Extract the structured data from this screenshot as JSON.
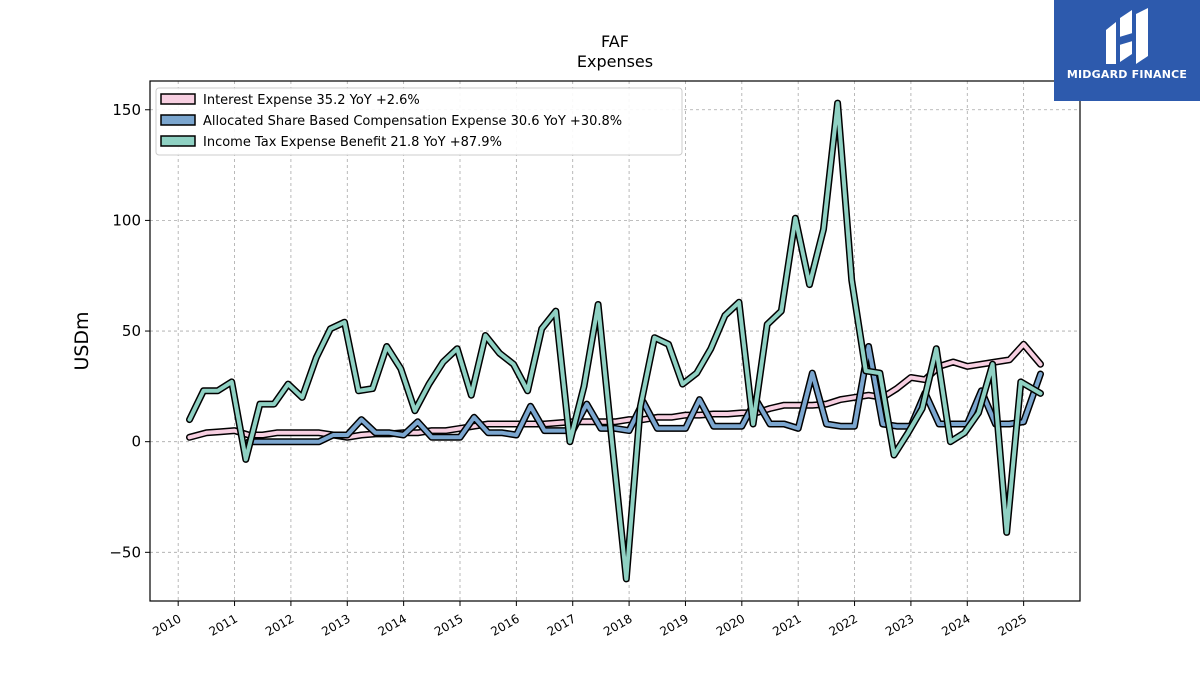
{
  "chart_data": {
    "type": "line",
    "title": "FAF",
    "subtitle": "Expenses",
    "xlabel": "",
    "ylabel": "USDm",
    "xlim": [
      2009.5,
      2026.0
    ],
    "ylim": [
      -72,
      163
    ],
    "yticks": [
      -50,
      0,
      50,
      100,
      150
    ],
    "ytick_labels": [
      "−50",
      "0",
      "50",
      "100",
      "150"
    ],
    "xticks": [
      2010,
      2011,
      2012,
      2013,
      2014,
      2015,
      2016,
      2017,
      2018,
      2019,
      2020,
      2021,
      2022,
      2023,
      2024,
      2025
    ],
    "xtick_labels": [
      "2010",
      "2011",
      "2012",
      "2013",
      "2014",
      "2015",
      "2016",
      "2017",
      "2018",
      "2019",
      "2020",
      "2021",
      "2022",
      "2023",
      "2024",
      "2025"
    ],
    "grid": true,
    "legend_position": "top-left",
    "series": [
      {
        "name": "Interest Expense  35.2 YoY +2.6%",
        "color": "#f7cfe1",
        "x": [
          2010.2,
          2010.5,
          2010.75,
          2011.0,
          2011.25,
          2011.5,
          2011.75,
          2012.0,
          2012.25,
          2012.5,
          2012.75,
          2013.0,
          2013.25,
          2013.5,
          2013.75,
          2014.0,
          2014.25,
          2014.5,
          2014.75,
          2015.0,
          2015.25,
          2015.5,
          2015.75,
          2016.0,
          2016.25,
          2016.5,
          2016.75,
          2017.0,
          2017.25,
          2017.5,
          2017.75,
          2018.0,
          2018.25,
          2018.5,
          2018.75,
          2019.0,
          2019.25,
          2019.5,
          2019.75,
          2020.0,
          2020.25,
          2020.5,
          2020.75,
          2021.0,
          2021.25,
          2021.5,
          2021.75,
          2022.0,
          2022.25,
          2022.5,
          2022.75,
          2023.0,
          2023.25,
          2023.5,
          2023.75,
          2024.0,
          2024.25,
          2024.5,
          2024.75,
          2025.0,
          2025.3
        ],
        "values": [
          2,
          4,
          4.5,
          5,
          3,
          3,
          4,
          4,
          4,
          4,
          3,
          2,
          3,
          3.5,
          3.5,
          4,
          4,
          5,
          5,
          6,
          7,
          8,
          8,
          8,
          8,
          8,
          8.5,
          9,
          9,
          9,
          9,
          10,
          10,
          11,
          11,
          12,
          12,
          12.5,
          12.5,
          13,
          13,
          15,
          16.5,
          16.5,
          16.5,
          17,
          19,
          20,
          21,
          20,
          24,
          29,
          28,
          34,
          36,
          34,
          35,
          36,
          37,
          44,
          35
        ]
      },
      {
        "name": "Allocated Share Based Compensation Expense  30.6 YoY +30.8%",
        "color": "#7ba6cf",
        "x": [
          2011.25,
          2011.5,
          2011.75,
          2012.0,
          2012.25,
          2012.5,
          2012.75,
          2013.0,
          2013.25,
          2013.5,
          2013.75,
          2014.0,
          2014.25,
          2014.5,
          2014.75,
          2015.0,
          2015.25,
          2015.5,
          2015.75,
          2016.0,
          2016.25,
          2016.5,
          2016.75,
          2017.0,
          2017.25,
          2017.5,
          2017.75,
          2018.0,
          2018.25,
          2018.5,
          2018.75,
          2019.0,
          2019.25,
          2019.5,
          2019.75,
          2020.0,
          2020.25,
          2020.5,
          2020.75,
          2021.0,
          2021.25,
          2021.5,
          2021.75,
          2022.0,
          2022.25,
          2022.5,
          2022.75,
          2023.0,
          2023.25,
          2023.5,
          2023.75,
          2024.0,
          2024.25,
          2024.5,
          2024.75,
          2025.0,
          2025.3
        ],
        "values": [
          0,
          0,
          0,
          0,
          0,
          0,
          3,
          3,
          10,
          4,
          4,
          3,
          9,
          2,
          2,
          2,
          11,
          4,
          4,
          3,
          16,
          5,
          5,
          5,
          17,
          6,
          6,
          5,
          18,
          6,
          6,
          6,
          19,
          7,
          7,
          7,
          19,
          8,
          8,
          6,
          31,
          8,
          7,
          7,
          43,
          8,
          7,
          7,
          22,
          8,
          8,
          8,
          23,
          8,
          8,
          9,
          30.6
        ]
      },
      {
        "name": "Income Tax Expense Benefit  21.8 YoY +87.9%",
        "color": "#8fd1c3",
        "x": [
          2010.2,
          2010.45,
          2010.7,
          2010.95,
          2011.2,
          2011.45,
          2011.7,
          2011.95,
          2012.2,
          2012.45,
          2012.7,
          2012.95,
          2013.2,
          2013.45,
          2013.7,
          2013.95,
          2014.2,
          2014.45,
          2014.7,
          2014.95,
          2015.2,
          2015.45,
          2015.7,
          2015.95,
          2016.2,
          2016.45,
          2016.7,
          2016.95,
          2017.2,
          2017.45,
          2017.7,
          2017.95,
          2018.2,
          2018.45,
          2018.7,
          2018.95,
          2019.2,
          2019.45,
          2019.7,
          2019.95,
          2020.2,
          2020.45,
          2020.7,
          2020.95,
          2021.2,
          2021.45,
          2021.7,
          2021.95,
          2022.2,
          2022.45,
          2022.7,
          2022.95,
          2023.2,
          2023.45,
          2023.7,
          2023.95,
          2024.2,
          2024.45,
          2024.7,
          2024.95,
          2025.3
        ],
        "values": [
          10,
          23,
          23,
          27,
          -8,
          17,
          17,
          26,
          20,
          38,
          51,
          54,
          23,
          24,
          43,
          33,
          14,
          26,
          36,
          42,
          21,
          48,
          40,
          35,
          23,
          51,
          59,
          0,
          25,
          62,
          -1,
          -62,
          16,
          47,
          44,
          26,
          31,
          42,
          57,
          63,
          8,
          53,
          59,
          101,
          71,
          96,
          153,
          73,
          32,
          31,
          -6,
          4,
          15,
          42,
          0,
          4,
          13,
          35,
          -41,
          27,
          21.8
        ]
      }
    ]
  },
  "branding": {
    "logo_text": "MIDGARD FINANCE",
    "logo_color": "#2d5aad"
  }
}
